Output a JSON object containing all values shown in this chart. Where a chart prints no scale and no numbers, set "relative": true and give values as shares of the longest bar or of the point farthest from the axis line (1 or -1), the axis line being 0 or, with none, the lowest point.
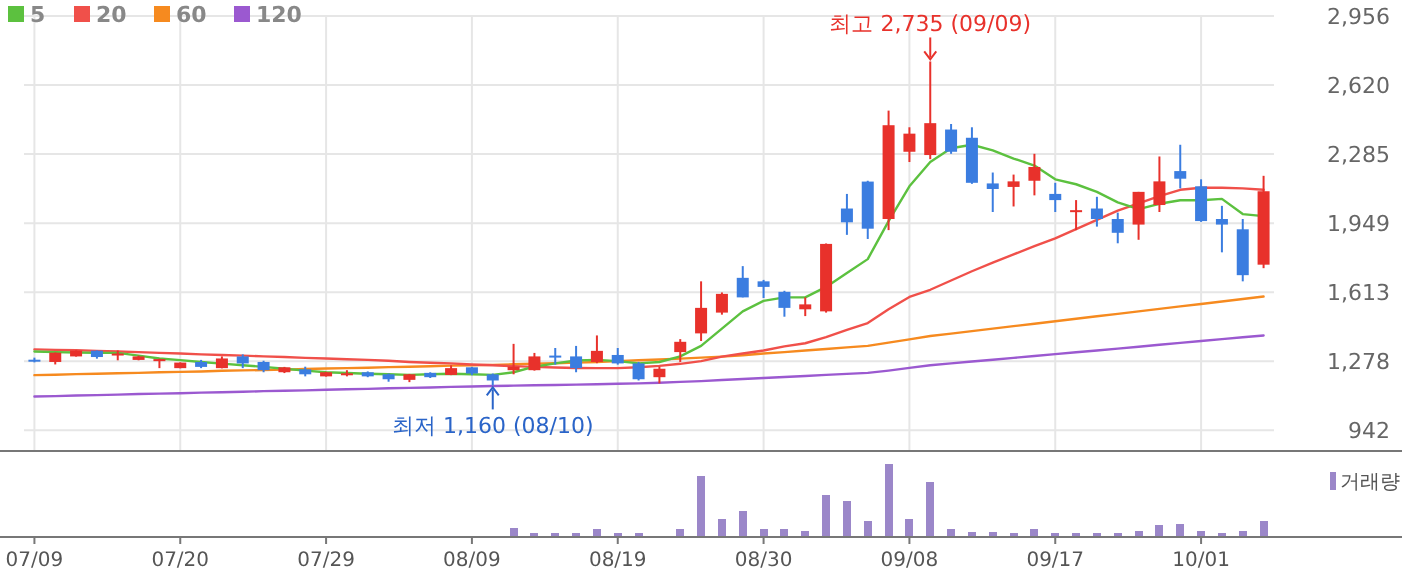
{
  "chart_data": [
    {
      "type": "candlestick",
      "categories": [
        null,
        null,
        null,
        null,
        null,
        null,
        null,
        null,
        null,
        null,
        null,
        null,
        null,
        null,
        null,
        null,
        null,
        null,
        null,
        null,
        null,
        null,
        null,
        null,
        null,
        null,
        null,
        null,
        null,
        null,
        null,
        null,
        null,
        null,
        null,
        null,
        null,
        null,
        null,
        null,
        null,
        null,
        null,
        null,
        null,
        null,
        null,
        null,
        null,
        null,
        null,
        null,
        null,
        null,
        null,
        null,
        null,
        null,
        null,
        null
      ],
      "ohlc": [
        [
          1285,
          1295,
          1272,
          1283
        ],
        [
          1274,
          1320,
          1262,
          1319
        ],
        [
          1301,
          1330,
          1300,
          1329
        ],
        [
          1329,
          1330,
          1290,
          1298
        ],
        [
          1310,
          1330,
          1282,
          1315
        ],
        [
          1284,
          1305,
          1282,
          1301
        ],
        [
          1278,
          1290,
          1244,
          1288
        ],
        [
          1244,
          1272,
          1243,
          1271
        ],
        [
          1274,
          1284,
          1244,
          1250
        ],
        [
          1244,
          1301,
          1243,
          1291
        ],
        [
          1301,
          1311,
          1244,
          1267
        ],
        [
          1274,
          1280,
          1224,
          1234
        ],
        [
          1224,
          1250,
          1220,
          1248
        ],
        [
          1238,
          1251,
          1204,
          1214
        ],
        [
          1204,
          1226,
          1203,
          1224
        ],
        [
          1215,
          1234,
          1204,
          1219
        ],
        [
          1224,
          1228,
          1200,
          1204
        ],
        [
          1214,
          1218,
          1178,
          1190
        ],
        [
          1187,
          1216,
          1176,
          1214
        ],
        [
          1221,
          1224,
          1196,
          1200
        ],
        [
          1211,
          1258,
          1210,
          1244
        ],
        [
          1248,
          1250,
          1210,
          1218
        ],
        [
          1214,
          1218,
          1160,
          1184
        ],
        [
          1234,
          1362,
          1214,
          1251
        ],
        [
          1234,
          1318,
          1232,
          1301
        ],
        [
          1305,
          1342,
          1261,
          1298
        ],
        [
          1301,
          1352,
          1224,
          1244
        ],
        [
          1274,
          1403,
          1268,
          1328
        ],
        [
          1308,
          1342,
          1261,
          1267
        ],
        [
          1267,
          1274,
          1184,
          1190
        ],
        [
          1200,
          1251,
          1170,
          1241
        ],
        [
          1322,
          1385,
          1274,
          1372
        ],
        [
          1413,
          1666,
          1376,
          1537
        ],
        [
          1514,
          1612,
          1504,
          1605
        ],
        [
          1683,
          1740,
          1588,
          1588
        ],
        [
          1666,
          1673,
          1585,
          1639
        ],
        [
          1615,
          1620,
          1494,
          1537
        ],
        [
          1530,
          1588,
          1497,
          1554
        ],
        [
          1520,
          1850,
          1514,
          1848
        ],
        [
          2020,
          2091,
          1892,
          1953
        ],
        [
          2151,
          2155,
          1872,
          1922
        ],
        [
          1969,
          2496,
          1915,
          2425
        ],
        [
          2296,
          2415,
          2246,
          2384
        ],
        [
          2280,
          2735,
          2260,
          2435
        ],
        [
          2404,
          2431,
          2286,
          2296
        ],
        [
          2364,
          2415,
          2140,
          2145
        ],
        [
          2142,
          2195,
          2003,
          2115
        ],
        [
          2125,
          2185,
          2030,
          2152
        ],
        [
          2155,
          2286,
          2084,
          2222
        ],
        [
          2091,
          2145,
          2003,
          2061
        ],
        [
          2006,
          2061,
          1915,
          2012
        ],
        [
          2020,
          2077,
          1932,
          1969
        ],
        [
          1969,
          2000,
          1851,
          1902
        ],
        [
          1942,
          2101,
          1868,
          2101
        ],
        [
          2037,
          2273,
          2003,
          2152
        ],
        [
          2202,
          2330,
          2118,
          2165
        ],
        [
          2128,
          2162,
          1955,
          1959
        ],
        [
          1969,
          2033,
          1807,
          1942
        ],
        [
          1919,
          1969,
          1666,
          1696
        ],
        [
          1747,
          2179,
          1730,
          2104
        ]
      ],
      "colors": [
        "#3b7de0",
        "#e8312b",
        "#e8312b",
        "#3b7de0",
        "#e8312b",
        "#e8312b",
        "#e8312b",
        "#e8312b",
        "#3b7de0",
        "#e8312b",
        "#3b7de0",
        "#3b7de0",
        "#e8312b",
        "#3b7de0",
        "#e8312b",
        "#e8312b",
        "#3b7de0",
        "#3b7de0",
        "#e8312b",
        "#3b7de0",
        "#e8312b",
        "#3b7de0",
        "#3b7de0",
        "#e8312b",
        "#e8312b",
        "#3b7de0",
        "#3b7de0",
        "#e8312b",
        "#3b7de0",
        "#3b7de0",
        "#e8312b",
        "#e8312b",
        "#e8312b",
        "#e8312b",
        "#3b7de0",
        "#3b7de0",
        "#3b7de0",
        "#e8312b",
        "#e8312b",
        "#3b7de0",
        "#3b7de0",
        "#e8312b",
        "#e8312b",
        "#e8312b",
        "#3b7de0",
        "#3b7de0",
        "#3b7de0",
        "#e8312b",
        "#e8312b",
        "#3b7de0",
        "#e8312b",
        "#3b7de0",
        "#3b7de0",
        "#e8312b",
        "#e8312b",
        "#3b7de0",
        "#3b7de0",
        "#3b7de0",
        "#3b7de0",
        "#e8312b"
      ],
      "series": [
        {
          "name": "5",
          "type": "line",
          "color": "#5cc13f",
          "values": [
            1325,
            1322,
            1320,
            1318,
            1318,
            1305,
            1291,
            1283,
            1274,
            1266,
            1258,
            1250,
            1241,
            1232,
            1224,
            1220,
            1217,
            1214,
            1211,
            1214,
            1217,
            1214,
            1211,
            1224,
            1251,
            1267,
            1281,
            1284,
            1278,
            1267,
            1274,
            1301,
            1352,
            1436,
            1520,
            1571,
            1588,
            1588,
            1639,
            1706,
            1774,
            1959,
            2128,
            2246,
            2313,
            2330,
            2303,
            2263,
            2229,
            2162,
            2138,
            2101,
            2050,
            2017,
            2043,
            2060,
            2060,
            2067,
            1993,
            1983
          ]
        },
        {
          "name": "20",
          "type": "line",
          "color": "#f0504a",
          "values": [
            1335,
            1333,
            1331,
            1328,
            1325,
            1322,
            1318,
            1315,
            1311,
            1308,
            1305,
            1301,
            1298,
            1294,
            1291,
            1287,
            1284,
            1280,
            1274,
            1270,
            1267,
            1262,
            1258,
            1254,
            1250,
            1247,
            1245,
            1244,
            1244,
            1248,
            1255,
            1265,
            1278,
            1300,
            1315,
            1330,
            1350,
            1365,
            1395,
            1430,
            1463,
            1530,
            1590,
            1625,
            1670,
            1715,
            1757,
            1797,
            1837,
            1875,
            1920,
            1965,
            2010,
            2045,
            2080,
            2111,
            2121,
            2121,
            2118,
            2111
          ]
        },
        {
          "name": "60",
          "type": "line",
          "color": "#f68a1f",
          "values": [
            1210,
            1212,
            1215,
            1217,
            1219,
            1221,
            1224,
            1226,
            1228,
            1231,
            1233,
            1235,
            1237,
            1240,
            1242,
            1244,
            1246,
            1249,
            1251,
            1253,
            1256,
            1258,
            1260,
            1263,
            1266,
            1268,
            1271,
            1274,
            1278,
            1282,
            1286,
            1290,
            1295,
            1300,
            1307,
            1315,
            1322,
            1330,
            1337,
            1345,
            1352,
            1368,
            1384,
            1400,
            1412,
            1424,
            1436,
            1448,
            1460,
            1472,
            1484,
            1496,
            1508,
            1520,
            1532,
            1544,
            1556,
            1568,
            1580,
            1592
          ]
        },
        {
          "name": "120",
          "type": "line",
          "color": "#9b59d0",
          "values": [
            1106,
            1108,
            1111,
            1113,
            1115,
            1118,
            1120,
            1122,
            1125,
            1127,
            1129,
            1132,
            1134,
            1136,
            1139,
            1141,
            1143,
            1146,
            1148,
            1150,
            1153,
            1155,
            1157,
            1159,
            1161,
            1162,
            1164,
            1166,
            1168,
            1170,
            1173,
            1177,
            1181,
            1186,
            1191,
            1196,
            1201,
            1206,
            1211,
            1216,
            1221,
            1232,
            1245,
            1258,
            1267,
            1276,
            1285,
            1294,
            1303,
            1312,
            1321,
            1330,
            1339,
            1348,
            1358,
            1367,
            1376,
            1385,
            1394,
            1403
          ]
        }
      ],
      "ylim": [
        846,
        2956
      ],
      "yticks": [
        {
          "value": 942,
          "label": "942"
        },
        {
          "value": 1278,
          "label": "1,278"
        },
        {
          "value": 1613,
          "label": "1,613"
        },
        {
          "value": 1949,
          "label": "1,949"
        },
        {
          "value": 2285,
          "label": "2,285"
        },
        {
          "value": 2620,
          "label": "2,620"
        },
        {
          "value": 2956,
          "label": "2,956"
        }
      ],
      "annotations": [
        {
          "text": "최고 2,735 (09/09)",
          "y": 2735
        },
        {
          "text": "최저 1,160 (08/10)",
          "y": 1160
        }
      ],
      "grid": true,
      "legend": "top left",
      "tick_labels": "y"
    },
    {
      "type": "bar",
      "relative": true,
      "categories": [
        "07/09",
        null,
        null,
        null,
        null,
        null,
        null,
        "07/20",
        null,
        null,
        null,
        null,
        null,
        null,
        "07/29",
        null,
        null,
        null,
        null,
        null,
        null,
        "08/09",
        null,
        null,
        null,
        null,
        null,
        null,
        "08/19",
        null,
        null,
        null,
        null,
        null,
        null,
        "08/30",
        null,
        null,
        null,
        null,
        null,
        null,
        "09/08",
        null,
        null,
        null,
        null,
        null,
        null,
        "09/17",
        null,
        null,
        null,
        null,
        null,
        null,
        "10/01",
        null,
        null,
        null
      ],
      "series": [
        {
          "name": "거래량",
          "color": "#9b87c9",
          "values": [
            null,
            null,
            null,
            null,
            null,
            null,
            null,
            null,
            null,
            null,
            null,
            null,
            null,
            null,
            null,
            null,
            null,
            null,
            null,
            null,
            null,
            null,
            null,
            0.11,
            0.04,
            0.04,
            0.04,
            0.1,
            0.04,
            0.04,
            null,
            0.1,
            0.84,
            0.23,
            0.35,
            0.1,
            0.1,
            0.07,
            0.57,
            0.48,
            0.21,
            1,
            0.23,
            0.75,
            0.1,
            0.06,
            0.06,
            0.04,
            0.1,
            0.04,
            0.04,
            0.04,
            0.04,
            0.07,
            0.15,
            0.17,
            0.07,
            0.04,
            0.07,
            0.21
          ]
        }
      ],
      "legend": "top right",
      "tick_labels": "x"
    }
  ]
}
